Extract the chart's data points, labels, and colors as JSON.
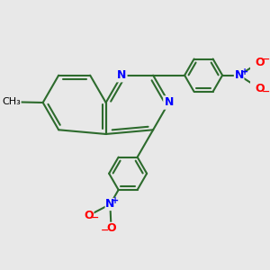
{
  "background_color": "#e8e8e8",
  "bond_color": "#2d6b2d",
  "nitrogen_color": "#0000ff",
  "oxygen_color": "#ff0000",
  "bond_width": 1.5,
  "figsize": [
    3.0,
    3.0
  ],
  "dpi": 100,
  "xlim": [
    -3.0,
    3.5
  ],
  "ylim": [
    -3.5,
    3.0
  ]
}
